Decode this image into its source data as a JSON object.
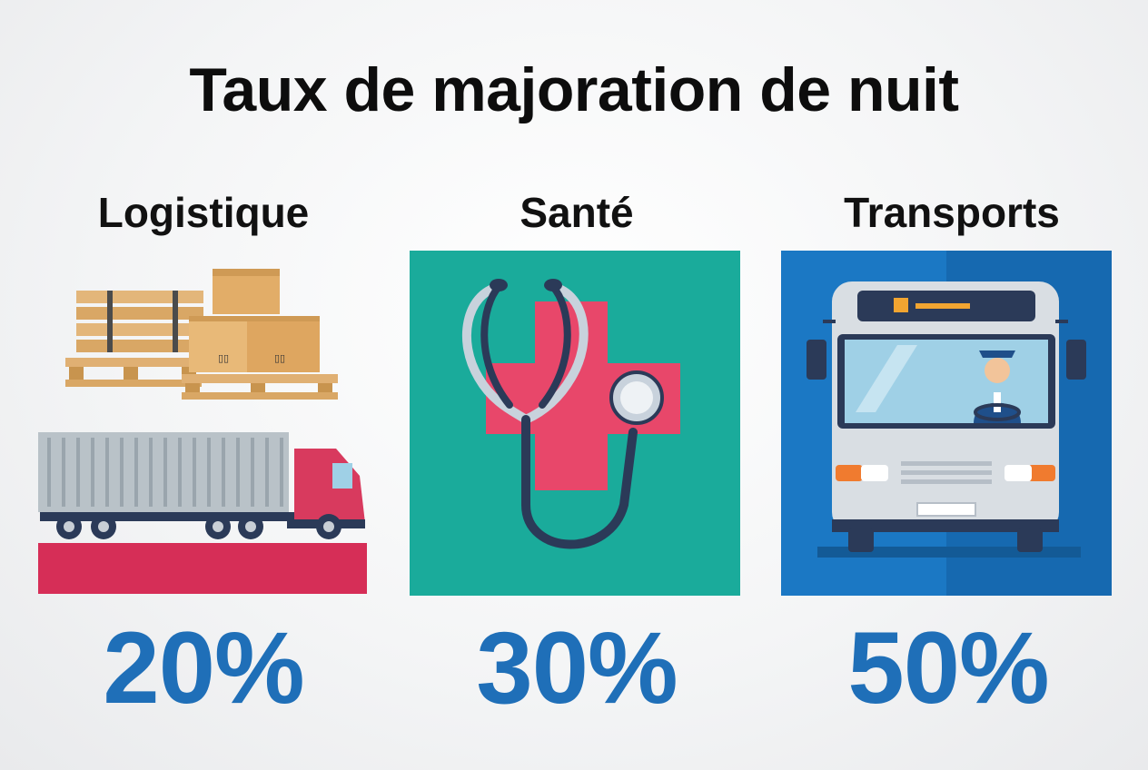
{
  "title": "Taux de majoration de nuit",
  "sectors": [
    {
      "label": "Logistique",
      "rate": "20%",
      "icon": "pallets-and-truck-icon",
      "accent": "#d62e57"
    },
    {
      "label": "Santé",
      "rate": "30%",
      "icon": "stethoscope-cross-icon",
      "accent": "#1aab9b"
    },
    {
      "label": "Transports",
      "rate": "50%",
      "icon": "bus-driver-icon",
      "accent": "#1b78c4"
    }
  ],
  "colors": {
    "title": "#0d0d0d",
    "rate": "#1f6fb8"
  }
}
